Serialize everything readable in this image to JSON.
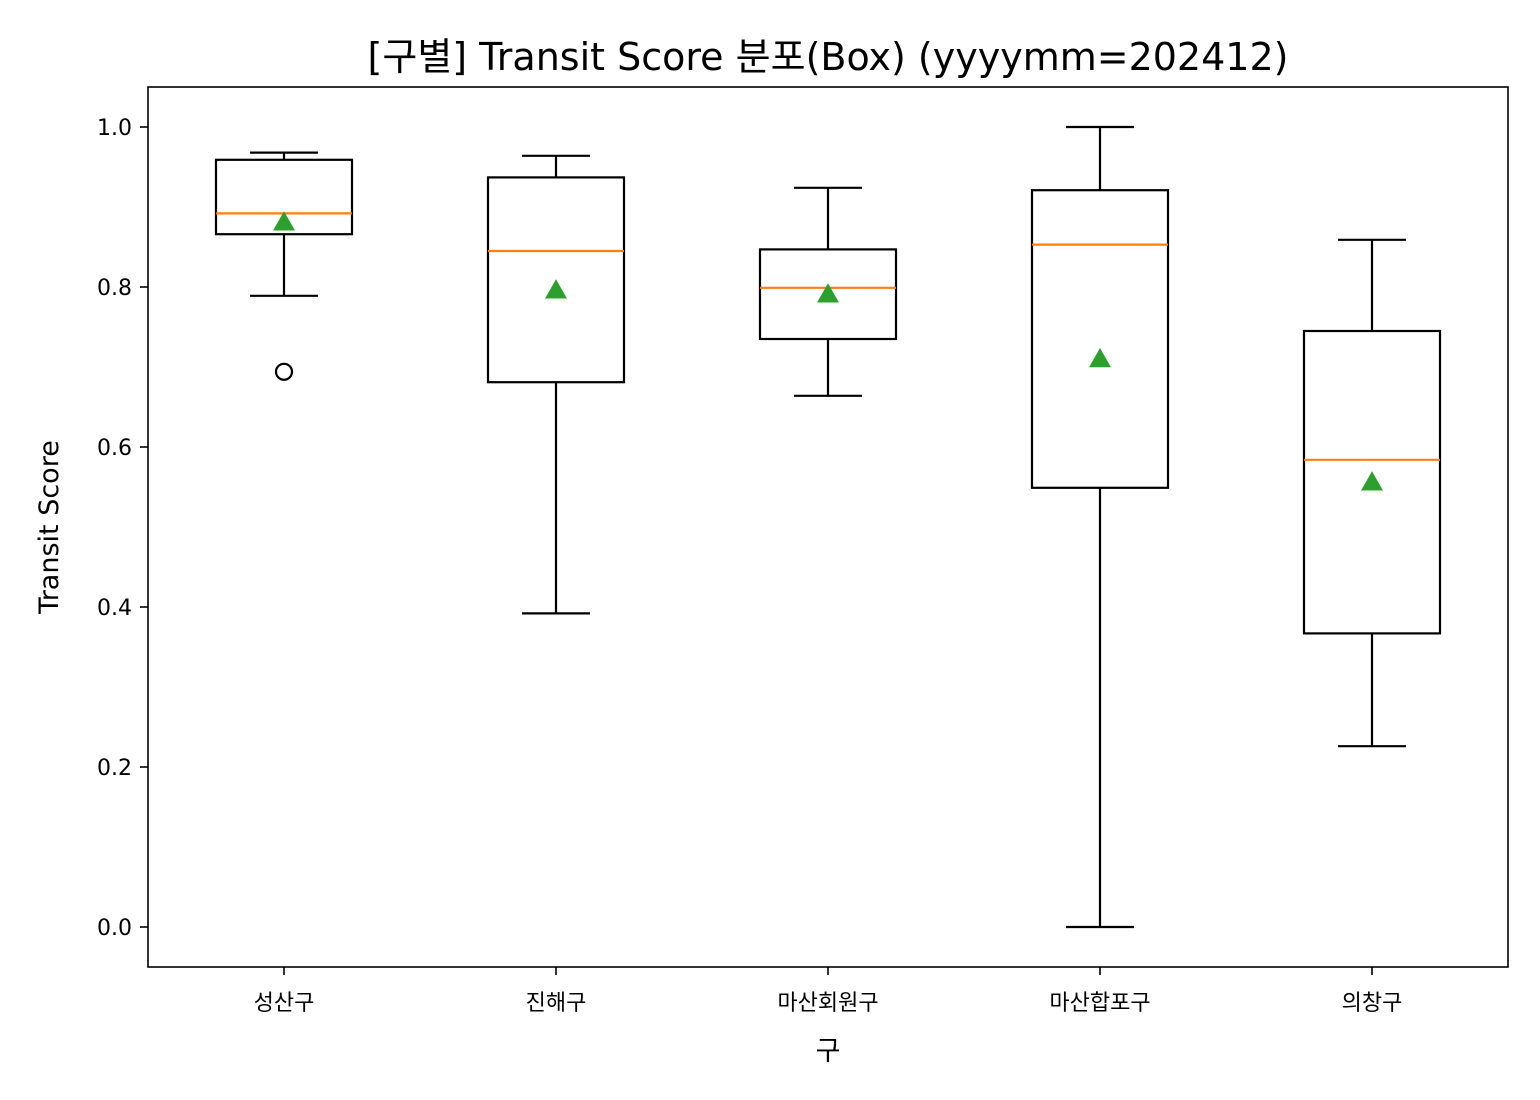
{
  "chart_data": {
    "type": "box",
    "title": "[구별] Transit Score 분포(Box) (yyyymm=202412)",
    "xlabel": "구",
    "ylabel": "Transit Score",
    "ylim": [
      -0.05,
      1.05
    ],
    "yticks": [
      0.0,
      0.2,
      0.4,
      0.6,
      0.8,
      1.0
    ],
    "ytick_labels": [
      "0.0",
      "0.2",
      "0.4",
      "0.6",
      "0.8",
      "1.0"
    ],
    "grid": false,
    "categories": [
      "성산구",
      "진해구",
      "마산회원구",
      "마산합포구",
      "의창구"
    ],
    "boxes": [
      {
        "whisker_low": 0.789,
        "q1": 0.866,
        "median": 0.892,
        "q3": 0.959,
        "whisker_high": 0.968,
        "mean": 0.881,
        "outliers": [
          0.694
        ]
      },
      {
        "whisker_low": 0.392,
        "q1": 0.681,
        "median": 0.845,
        "q3": 0.937,
        "whisker_high": 0.964,
        "mean": 0.796,
        "outliers": []
      },
      {
        "whisker_low": 0.664,
        "q1": 0.735,
        "median": 0.799,
        "q3": 0.847,
        "whisker_high": 0.924,
        "mean": 0.791,
        "outliers": []
      },
      {
        "whisker_low": 0.0,
        "q1": 0.549,
        "median": 0.853,
        "q3": 0.921,
        "whisker_high": 1.0,
        "mean": 0.71,
        "outliers": []
      },
      {
        "whisker_low": 0.226,
        "q1": 0.367,
        "median": 0.584,
        "q3": 0.745,
        "whisker_high": 0.859,
        "mean": 0.556,
        "outliers": []
      }
    ],
    "colors": {
      "box": "#000000",
      "median": "#ff7f0e",
      "mean": "#2ca02c",
      "outlier": "#000000"
    }
  }
}
